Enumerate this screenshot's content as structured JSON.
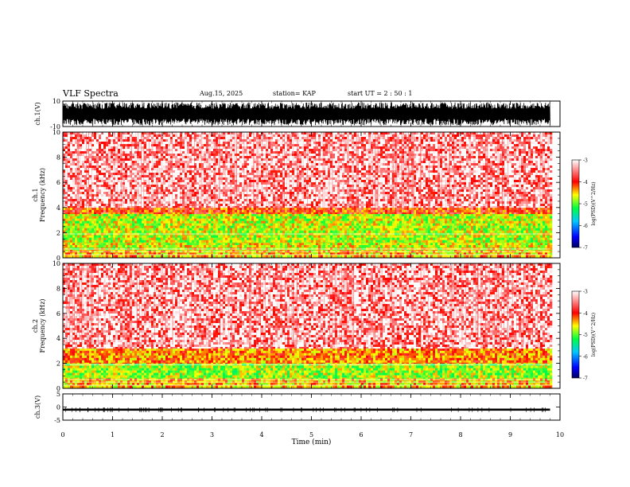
{
  "header": {
    "title": "VLF Spectra",
    "date": "Aug.15, 2025",
    "station": "station= KAP",
    "start": "start  UT  =   2  : 50 : 1"
  },
  "chart_data": [
    {
      "type": "line",
      "panel": "ch.1 waveform",
      "ylabel": "ch.1(V)",
      "ylim": [
        -10,
        10
      ],
      "yticks": [
        "10",
        "-10"
      ],
      "description": "dense black waveform oscillating roughly between -9 and +9 V across full 0-9.8 min span"
    },
    {
      "type": "heatmap",
      "panel": "ch.1 spectrogram",
      "ylabel": "ch.1 Frequency (kHz)",
      "ylim": [
        0,
        10
      ],
      "yticks": [
        "0",
        "2",
        "4",
        "6",
        "8",
        "10"
      ],
      "colorbar": {
        "label": "log(PSD)(V^2/Hz)",
        "range": [
          -7,
          -3
        ],
        "ticks": [
          "-3",
          "-4",
          "-5",
          "-6",
          "-7"
        ]
      },
      "bands": [
        {
          "f_low": 0.0,
          "f_high": 0.6,
          "level": -4.2
        },
        {
          "f_low": 0.6,
          "f_high": 1.2,
          "level": -4.4
        },
        {
          "f_low": 1.2,
          "f_high": 3.5,
          "level": -4.5
        },
        {
          "f_low": 3.5,
          "f_high": 4.0,
          "level": -3.8
        },
        {
          "f_low": 4.0,
          "f_high": 10.0,
          "level": -3.2
        }
      ]
    },
    {
      "type": "heatmap",
      "panel": "ch.2 spectrogram",
      "ylabel": "ch.2 Frequency (kHz)",
      "ylim": [
        0,
        10
      ],
      "yticks": [
        "0",
        "2",
        "4",
        "6",
        "8",
        "10"
      ],
      "colorbar": {
        "label": "log(PSD)(V^2/Hz)",
        "range": [
          -7,
          -3
        ],
        "ticks": [
          "-3",
          "-4",
          "-5",
          "-6",
          "-7"
        ]
      },
      "bands": [
        {
          "f_low": 0.0,
          "f_high": 0.8,
          "level": -4.2
        },
        {
          "f_low": 0.8,
          "f_high": 2.0,
          "level": -4.6
        },
        {
          "f_low": 2.0,
          "f_high": 3.2,
          "level": -4.0
        },
        {
          "f_low": 3.2,
          "f_high": 10.0,
          "level": -3.2
        }
      ]
    },
    {
      "type": "line",
      "panel": "ch.3 waveform",
      "ylabel": "ch.3(V)",
      "ylim": [
        -5,
        5
      ],
      "yticks": [
        "5",
        "0",
        "-5"
      ],
      "description": "flat thick black trace at about -1 V with small spikes"
    }
  ],
  "x_axis": {
    "label": "Time  (min)",
    "range": [
      0,
      10
    ],
    "ticks": [
      "0",
      "1",
      "2",
      "3",
      "4",
      "5",
      "6",
      "7",
      "8",
      "9",
      "10"
    ],
    "data_end": 9.8
  },
  "colors": {
    "colormap": [
      "#000080",
      "#0000ff",
      "#00c0ff",
      "#00ff40",
      "#ffff00",
      "#ff0000",
      "#ffffff"
    ],
    "trace": "#000000"
  }
}
